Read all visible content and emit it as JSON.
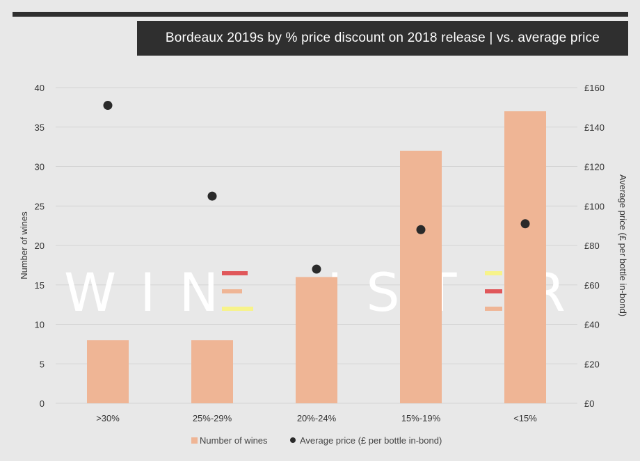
{
  "header": {
    "title": "Bordeaux 2019s by % price discount on 2018 release | vs. average price"
  },
  "watermark": {
    "left": "WIN",
    "right_a": "IS",
    "right_b": "T",
    "right_c": "R",
    "bar_colors": [
      "#e0575a",
      "#efb595",
      "#f7f38a"
    ]
  },
  "colors": {
    "bar": "#efb595",
    "dot": "#2a2a2a",
    "grid": "#d4d4d4",
    "background": "#e8e8e8",
    "title_bg": "#2f2f2f"
  },
  "chart_data": {
    "type": "bar",
    "categories": [
      ">30%",
      "25%-29%",
      "20%-24%",
      "15%-19%",
      "<15%"
    ],
    "series": [
      {
        "name": "Number of wines",
        "type": "bar",
        "axis": "left",
        "values": [
          8,
          8,
          16,
          32,
          37
        ]
      },
      {
        "name": "Average price (£ per bottle in-bond)",
        "type": "scatter",
        "axis": "right",
        "values": [
          151,
          105,
          68,
          88,
          91
        ]
      }
    ],
    "y_left": {
      "label": "Number of wines",
      "ylim": [
        0,
        40
      ],
      "ticks": [
        "0",
        "5",
        "10",
        "15",
        "20",
        "25",
        "30",
        "35",
        "40"
      ]
    },
    "y_right": {
      "label": "Average price (£ per bottle in-bond)",
      "ylim": [
        0,
        160
      ],
      "ticks": [
        "£0",
        "£20",
        "£40",
        "£60",
        "£80",
        "£100",
        "£120",
        "£140",
        "£160"
      ]
    },
    "grid": true,
    "legend": "bottom-center"
  }
}
